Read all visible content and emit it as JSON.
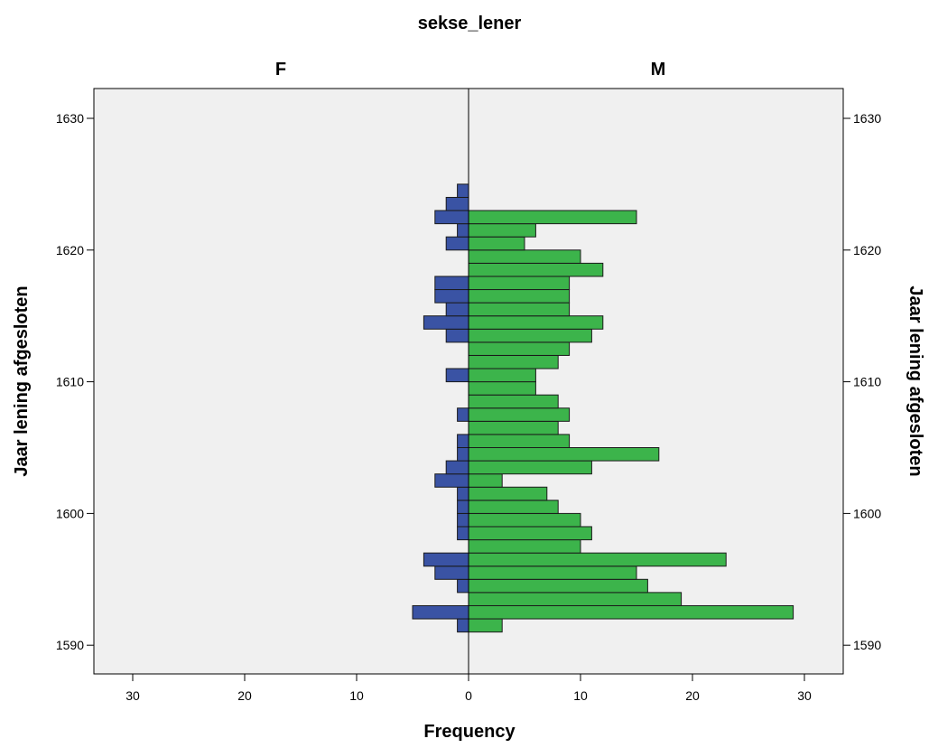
{
  "chart_data": {
    "type": "bar",
    "orientation": "horizontal-population-pyramid",
    "title": "sekse_lener",
    "panels": [
      "F",
      "M"
    ],
    "xlabel": "Frequency",
    "ylabel": "Jaar lening afgesloten",
    "x_ticks": [
      30,
      20,
      10,
      0,
      10,
      20,
      30
    ],
    "y_ticks": [
      1590,
      1600,
      1610,
      1620,
      1630
    ],
    "xlim": [
      0,
      33
    ],
    "ylim": [
      1589,
      1632
    ],
    "grid": false,
    "categories": [
      1591,
      1592,
      1593,
      1594,
      1595,
      1596,
      1597,
      1598,
      1599,
      1600,
      1601,
      1602,
      1603,
      1604,
      1605,
      1606,
      1607,
      1608,
      1609,
      1610,
      1611,
      1612,
      1613,
      1614,
      1615,
      1616,
      1617,
      1618,
      1619,
      1620,
      1621,
      1622,
      1623,
      1624
    ],
    "series": [
      {
        "name": "F",
        "color": "#3a53a4",
        "values": [
          1,
          5,
          0,
          1,
          3,
          4,
          0,
          1,
          1,
          1,
          1,
          3,
          2,
          1,
          1,
          0,
          1,
          0,
          0,
          2,
          0,
          0,
          2,
          4,
          2,
          3,
          3,
          0,
          0,
          2,
          1,
          3,
          2,
          1
        ]
      },
      {
        "name": "M",
        "color": "#3cb44b",
        "values": [
          3,
          29,
          19,
          16,
          15,
          23,
          10,
          11,
          10,
          8,
          7,
          3,
          11,
          17,
          9,
          8,
          9,
          8,
          6,
          6,
          8,
          9,
          11,
          12,
          9,
          9,
          9,
          12,
          10,
          5,
          6,
          15,
          0,
          0
        ]
      }
    ]
  },
  "colors": {
    "plot_background": "#f0f0f0",
    "bar_female": "#3a53a4",
    "bar_male": "#3cb44b",
    "bar_stroke": "#1a1a1a"
  }
}
